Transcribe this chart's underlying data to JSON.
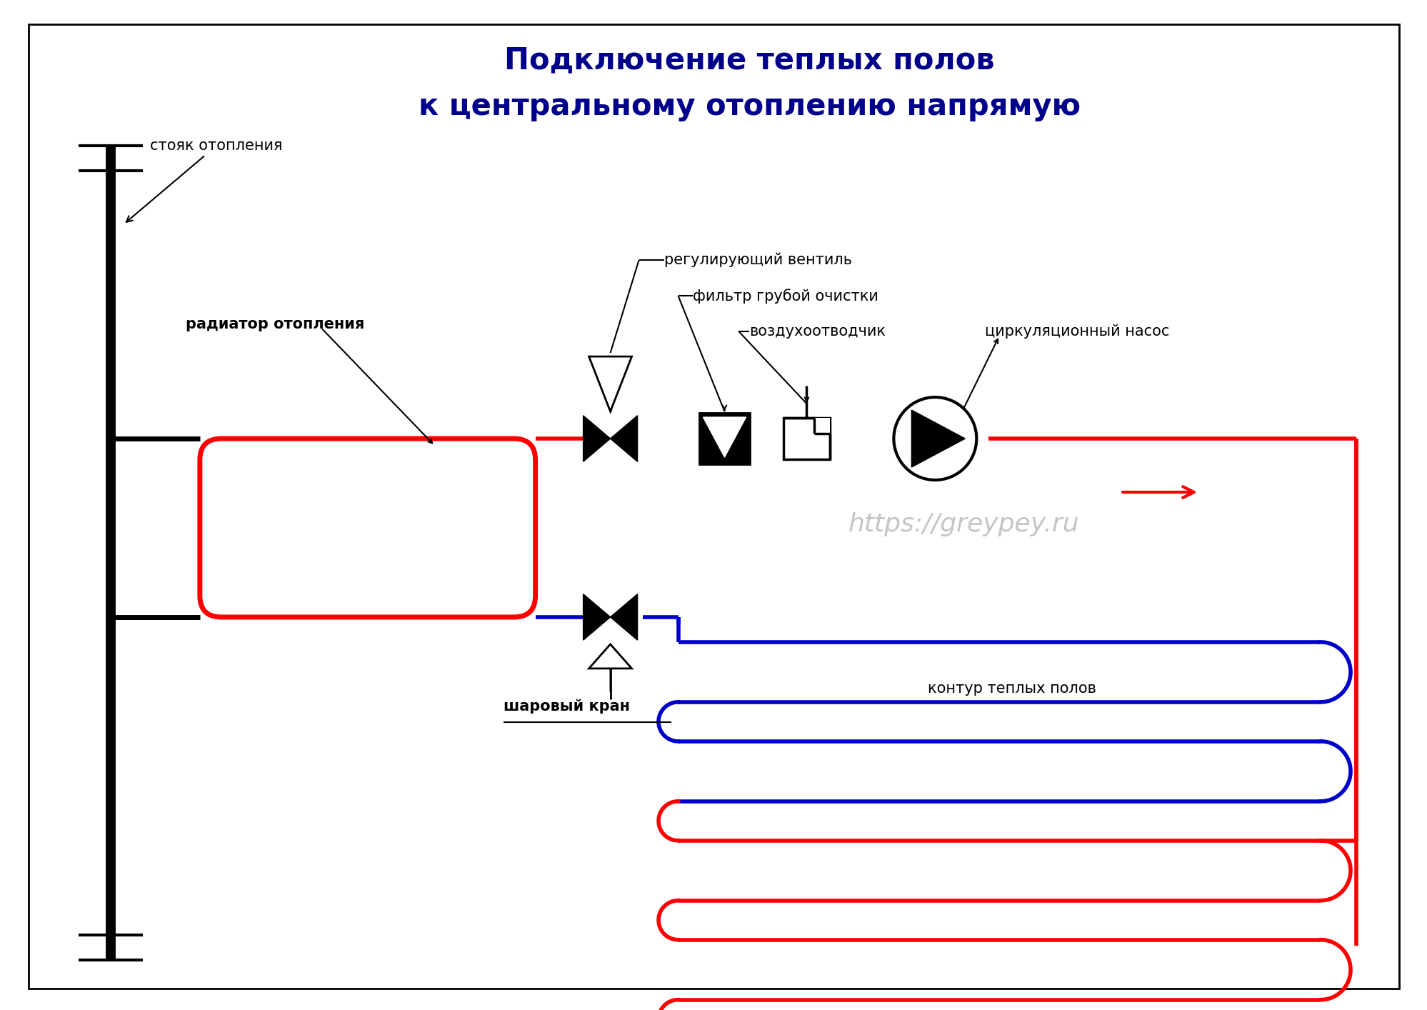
{
  "title_line1": "Подключение теплых полов",
  "title_line2": "к центральному отоплению напрямую",
  "title_color": "#00008B",
  "title_fontsize": 30,
  "bg_color": "#FFFFFF",
  "watermark": "https://greypey.ru",
  "watermark_color": "#BBBBBB",
  "label_stoyak": "стояк отопления",
  "label_radiator": "радиатор отопления",
  "label_regvalve": "регулирующий вентиль",
  "label_filter": "фильтр грубой очистки",
  "label_airvent": "воздухоотводчик",
  "label_pump": "циркуляционный насос",
  "label_ballvalve": "шаровый кран",
  "label_contour": "контур теплых полов",
  "red": "#FF0000",
  "blue": "#0000CC",
  "black": "#000000"
}
